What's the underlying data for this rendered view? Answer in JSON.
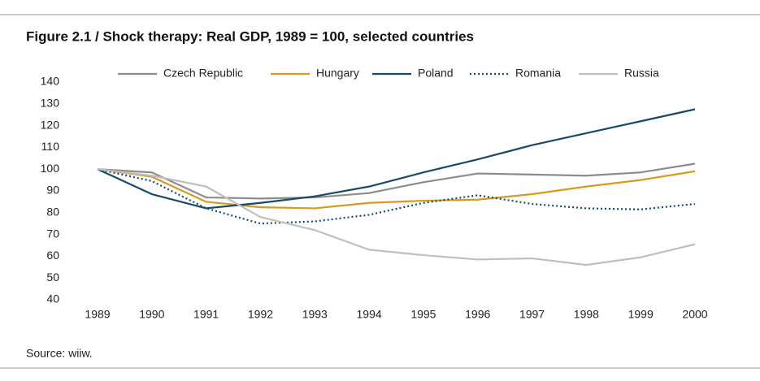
{
  "chart_data": {
    "type": "line",
    "title": "Figure 2.1 / Shock therapy: Real GDP, 1989 = 100, selected countries",
    "source": "Source: wiiw.",
    "categories": [
      "1989",
      "1990",
      "1991",
      "1992",
      "1993",
      "1994",
      "1995",
      "1996",
      "1997",
      "1998",
      "1999",
      "2000"
    ],
    "series": [
      {
        "name": "Czech Republic",
        "color": "#8c8c8c",
        "style": "solid",
        "values": [
          100,
          98.5,
          87,
          86.5,
          87,
          89,
          94,
          98,
          97.5,
          97,
          98.5,
          102.5
        ]
      },
      {
        "name": "Hungary",
        "color": "#d9981f",
        "style": "solid",
        "values": [
          100,
          96.5,
          85,
          82.5,
          82,
          84.5,
          85.5,
          86,
          88.5,
          92,
          95,
          99
        ]
      },
      {
        "name": "Poland",
        "color": "#174a68",
        "style": "solid",
        "values": [
          100,
          88.5,
          82,
          84.5,
          87.5,
          92,
          98.5,
          104.5,
          111,
          116.5,
          122,
          127.5
        ]
      },
      {
        "name": "Romania",
        "color": "#174a68",
        "style": "dotted",
        "values": [
          100,
          94.5,
          82,
          75,
          76,
          79,
          84.5,
          88,
          84,
          82,
          81.5,
          84
        ]
      },
      {
        "name": "Russia",
        "color": "#bfbfbf",
        "style": "solid",
        "values": [
          100,
          97,
          92,
          78,
          72,
          63,
          60.5,
          58.5,
          59,
          56,
          59.5,
          65.5
        ]
      }
    ],
    "ylim": [
      40,
      140
    ],
    "yticks": [
      40,
      50,
      60,
      70,
      80,
      90,
      100,
      110,
      120,
      130,
      140
    ],
    "grid": false,
    "legend": "top"
  }
}
